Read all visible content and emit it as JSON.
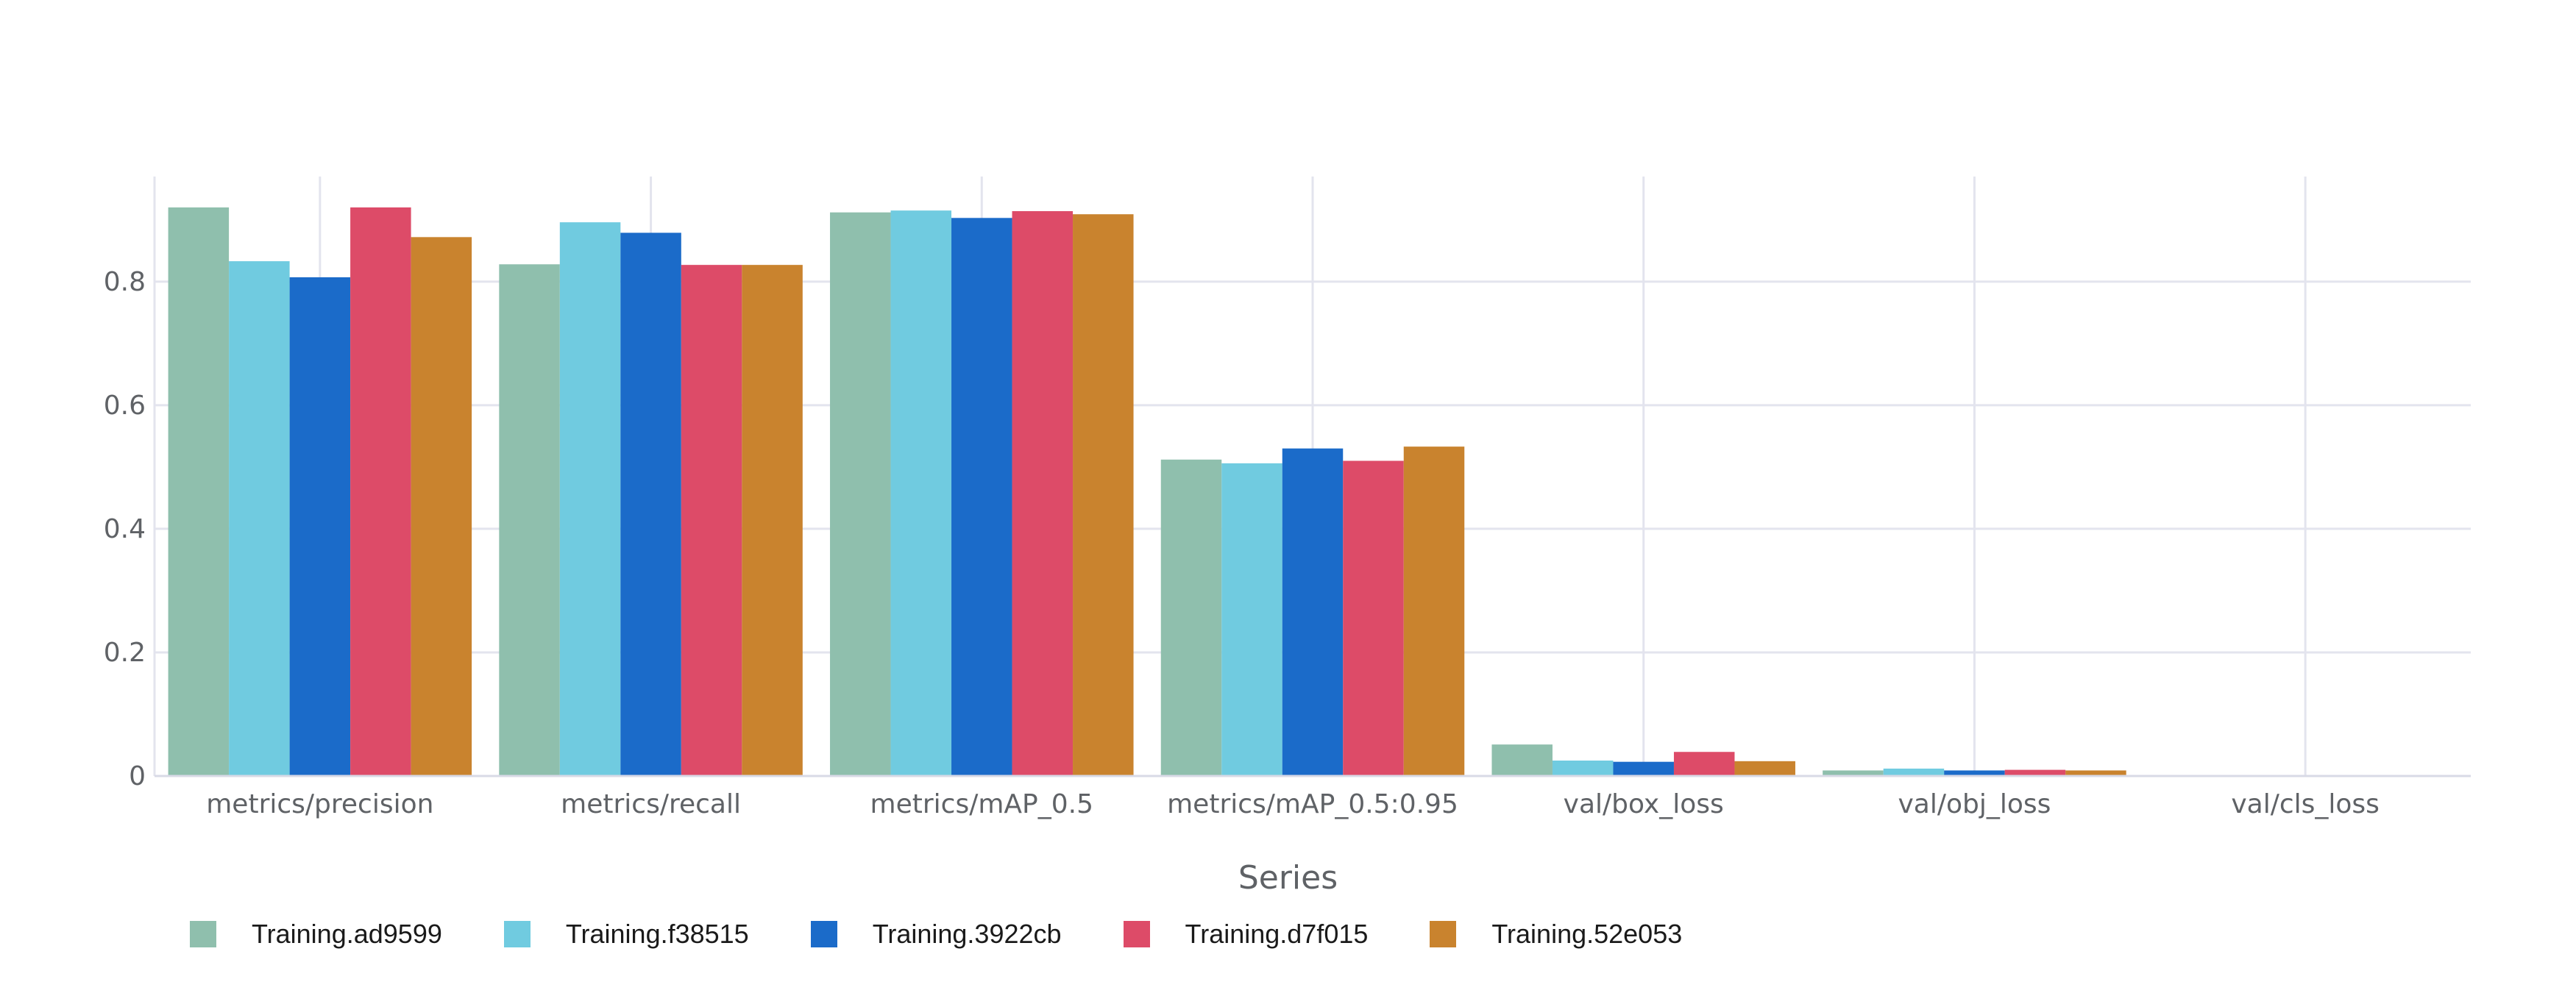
{
  "chart_data": {
    "type": "bar",
    "categories": [
      "metrics/precision",
      "metrics/recall",
      "metrics/mAP_0.5",
      "metrics/mAP_0.5:0.95",
      "val/box_loss",
      "val/obj_loss",
      "val/cls_loss"
    ],
    "series": [
      {
        "name": "Training.ad9599",
        "color": "#8fbfad",
        "values": [
          0.92,
          0.828,
          0.912,
          0.512,
          0.051,
          0.009,
          0.0
        ]
      },
      {
        "name": "Training.f38515",
        "color": "#70cbe0",
        "values": [
          0.833,
          0.896,
          0.915,
          0.506,
          0.025,
          0.012,
          0.0
        ]
      },
      {
        "name": "Training.3922cb",
        "color": "#1b6bc9",
        "values": [
          0.807,
          0.879,
          0.903,
          0.53,
          0.023,
          0.009,
          0.0
        ]
      },
      {
        "name": "Training.d7f015",
        "color": "#dd4b68",
        "values": [
          0.92,
          0.827,
          0.914,
          0.51,
          0.039,
          0.01,
          0.0
        ]
      },
      {
        "name": "Training.52e053",
        "color": "#c9832e",
        "values": [
          0.872,
          0.827,
          0.909,
          0.533,
          0.024,
          0.009,
          0.0
        ]
      }
    ],
    "ylim": [
      0,
      0.97
    ],
    "yticks": [
      0,
      0.2,
      0.4,
      0.6,
      0.8
    ],
    "ytick_labels": [
      "0",
      "0.2",
      "0.4",
      "0.6",
      "0.8"
    ],
    "grid": true,
    "legend": {
      "title": "Series",
      "placement": "bottom-left"
    }
  }
}
